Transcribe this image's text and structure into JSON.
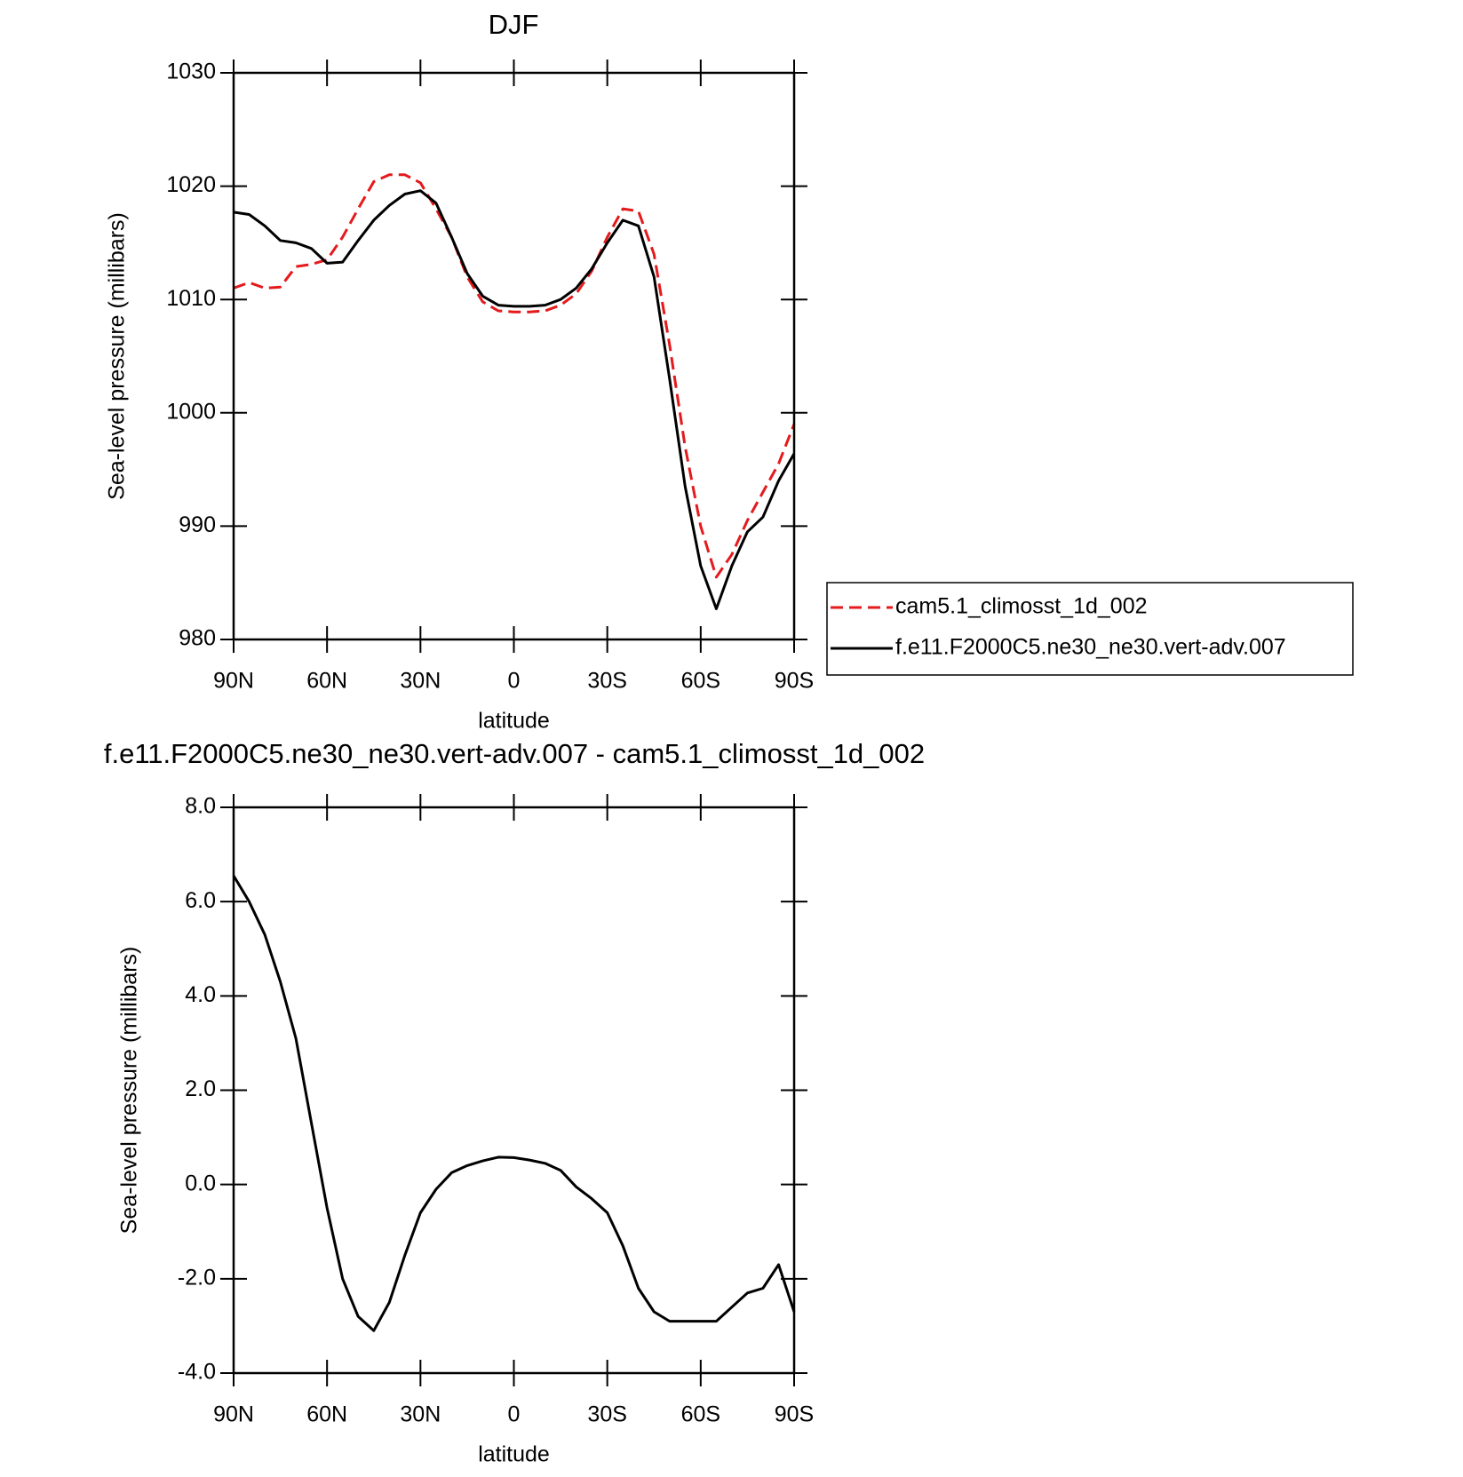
{
  "chart_data": [
    {
      "type": "line",
      "title": "DJF",
      "x_label": "latitude",
      "y_label": "Sea-level pressure (millibars)",
      "x": [
        90,
        85,
        80,
        75,
        70,
        65,
        60,
        55,
        50,
        45,
        40,
        35,
        30,
        25,
        20,
        15,
        10,
        5,
        0,
        -5,
        -10,
        -15,
        -20,
        -25,
        -30,
        -35,
        -40,
        -45,
        -50,
        -55,
        -60,
        -65,
        -70,
        -75,
        -80,
        -85,
        -90
      ],
      "xlim": [
        90,
        -90
      ],
      "xticks": [
        {
          "value": 90,
          "label": "90N"
        },
        {
          "value": 60,
          "label": "60N"
        },
        {
          "value": 30,
          "label": "30N"
        },
        0,
        {
          "value": -30,
          "label": "30S"
        },
        {
          "value": -60,
          "label": "60S"
        },
        {
          "value": -90,
          "label": "90S"
        }
      ],
      "ylim": [
        980,
        1030
      ],
      "yticks": [
        980,
        990,
        1000,
        1010,
        1020,
        1030
      ],
      "legend": "right",
      "series": [
        {
          "name": "cam5.1_climosst_1d_002",
          "color": "#e41a1c",
          "line_style": "dashed",
          "values": [
            1011,
            1011.5,
            1011,
            1011.1,
            1012.9,
            1013.1,
            1013.5,
            1015.5,
            1018,
            1020.4,
            1021,
            1021,
            1020.3,
            1018,
            1015.5,
            1012,
            1009.8,
            1009,
            1008.9,
            1008.9,
            1009,
            1009.5,
            1010.5,
            1012.5,
            1015.5,
            1018,
            1017.8,
            1014,
            1006,
            997,
            990,
            985.5,
            987.5,
            990.5,
            993,
            995.5,
            999
          ]
        },
        {
          "name": "f.e11.F2000C5.ne30_ne30.vert-adv.007",
          "color": "#000000",
          "line_style": "solid",
          "values": [
            1017.7,
            1017.5,
            1016.5,
            1015.2,
            1015,
            1014.5,
            1013.2,
            1013.3,
            1015.2,
            1017,
            1018.3,
            1019.3,
            1019.6,
            1018.5,
            1015.5,
            1012.3,
            1010.3,
            1009.5,
            1009.4,
            1009.4,
            1009.5,
            1010,
            1011,
            1012.7,
            1015,
            1017,
            1016.5,
            1012,
            1003,
            993.5,
            986.5,
            982.7,
            986.5,
            989.5,
            990.8,
            994,
            996.4
          ]
        }
      ]
    },
    {
      "type": "line",
      "title": "f.e11.F2000C5.ne30_ne30.vert-adv.007 - cam5.1_climosst_1d_002",
      "x_label": "latitude",
      "y_label": "Sea-level pressure (millibars)",
      "x": [
        90,
        85,
        80,
        75,
        70,
        65,
        60,
        55,
        50,
        45,
        40,
        35,
        30,
        25,
        20,
        15,
        10,
        5,
        0,
        -5,
        -10,
        -15,
        -20,
        -25,
        -30,
        -35,
        -40,
        -45,
        -50,
        -55,
        -60,
        -65,
        -70,
        -75,
        -80,
        -85,
        -90
      ],
      "xlim": [
        90,
        -90
      ],
      "xticks": [
        {
          "value": 90,
          "label": "90N"
        },
        {
          "value": 60,
          "label": "60N"
        },
        {
          "value": 30,
          "label": "30N"
        },
        0,
        {
          "value": -30,
          "label": "30S"
        },
        {
          "value": -60,
          "label": "60S"
        },
        {
          "value": -90,
          "label": "90S"
        }
      ],
      "ylim": [
        -4,
        8
      ],
      "yticks": [
        {
          "value": -4,
          "label": "-4.0"
        },
        {
          "value": -2,
          "label": "-2.0"
        },
        {
          "value": 0,
          "label": "0.0"
        },
        {
          "value": 2,
          "label": "2.0"
        },
        {
          "value": 4,
          "label": "4.0"
        },
        {
          "value": 6,
          "label": "6.0"
        },
        {
          "value": 8,
          "label": "8.0"
        }
      ],
      "series": [
        {
          "color": "#000000",
          "line_style": "solid",
          "values": [
            6.55,
            6.0,
            5.3,
            4.3,
            3.1,
            1.3,
            -0.5,
            -2.0,
            -2.8,
            -3.1,
            -2.5,
            -1.5,
            -0.6,
            -0.1,
            0.25,
            0.4,
            0.5,
            0.58,
            0.57,
            0.52,
            0.45,
            0.3,
            -0.05,
            -0.3,
            -0.6,
            -1.3,
            -2.2,
            -2.7,
            -2.9,
            -2.9,
            -2.9,
            -2.9,
            -2.6,
            -2.3,
            -2.2,
            -1.7,
            -2.7
          ]
        }
      ]
    }
  ]
}
